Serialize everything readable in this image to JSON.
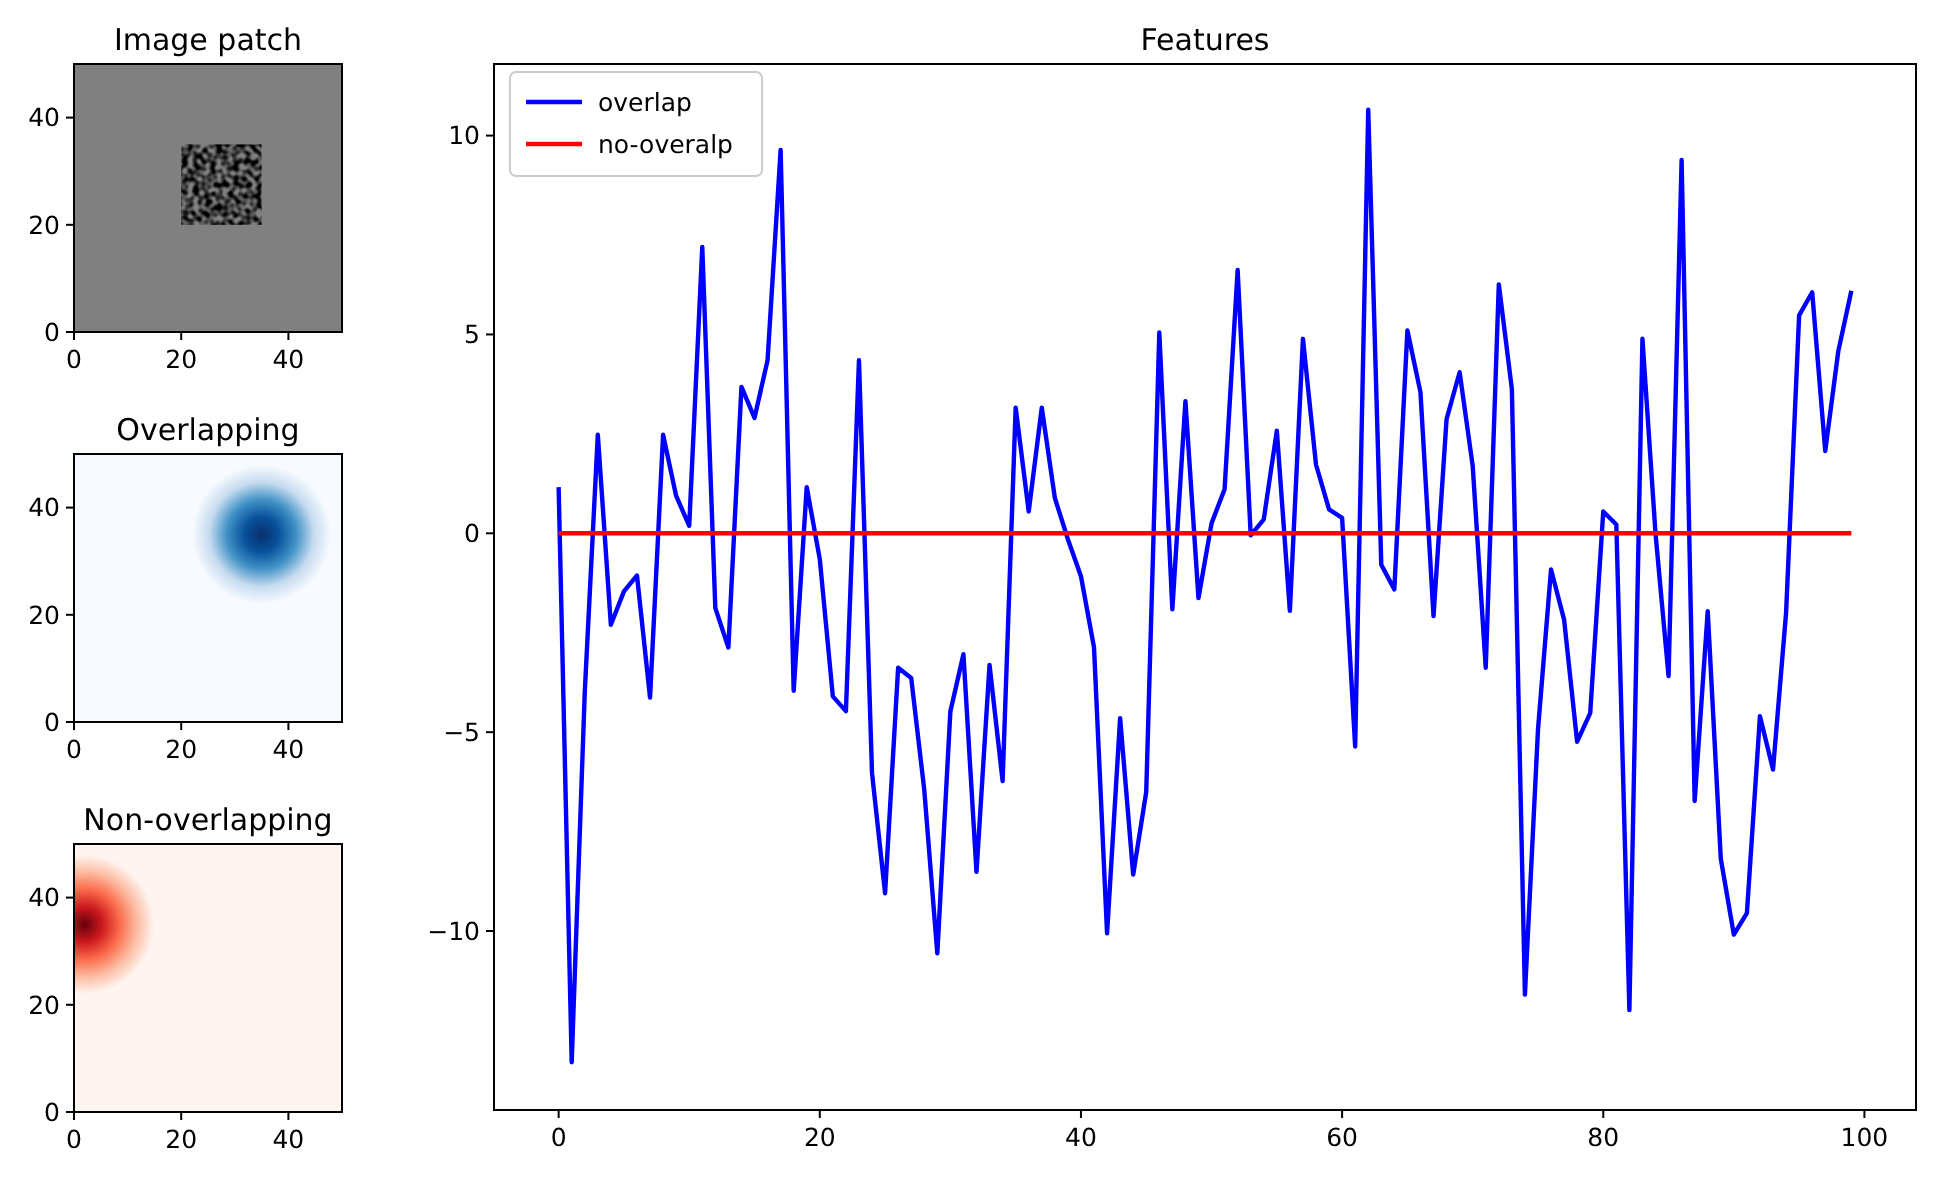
{
  "chart_data": [
    {
      "type": "scatter",
      "title": "Image patch",
      "xlim": [
        0,
        50
      ],
      "ylim": [
        0,
        50
      ],
      "xticks": [
        0,
        20,
        40
      ],
      "yticks": [
        0,
        20,
        40
      ]
    },
    {
      "type": "scatter",
      "title": "Overlapping",
      "xlim": [
        0,
        50
      ],
      "ylim": [
        0,
        50
      ],
      "xticks": [
        0,
        20,
        40
      ],
      "yticks": [
        0,
        20,
        40
      ]
    },
    {
      "type": "scatter",
      "title": "Non-overlapping",
      "xlim": [
        0,
        50
      ],
      "ylim": [
        0,
        50
      ],
      "xticks": [
        0,
        20,
        40
      ],
      "yticks": [
        0,
        20,
        40
      ]
    },
    {
      "type": "line",
      "title": "Features",
      "xlim": [
        -4.95,
        103.95
      ],
      "ylim": [
        -14.5,
        11.8
      ],
      "xticks": [
        0,
        20,
        40,
        60,
        80,
        100
      ],
      "yticks": [
        {
          "value": -10,
          "label": "−10"
        },
        {
          "value": -5,
          "label": "−5"
        },
        0,
        5,
        10
      ],
      "legend": "top left",
      "line_style": "solid",
      "marker": "none",
      "grid": false,
      "x": [
        0,
        1,
        2,
        3,
        4,
        5,
        6,
        7,
        8,
        9,
        10,
        11,
        12,
        13,
        14,
        15,
        16,
        17,
        18,
        19,
        20,
        21,
        22,
        23,
        24,
        25,
        26,
        27,
        28,
        29,
        30,
        31,
        32,
        33,
        34,
        35,
        36,
        37,
        38,
        39,
        40,
        41,
        42,
        43,
        44,
        45,
        46,
        47,
        48,
        49,
        50,
        51,
        52,
        53,
        54,
        55,
        56,
        57,
        58,
        59,
        60,
        61,
        62,
        63,
        64,
        65,
        66,
        67,
        68,
        69,
        70,
        71,
        72,
        73,
        74,
        75,
        76,
        77,
        78,
        79,
        80,
        81,
        82,
        83,
        84,
        85,
        86,
        87,
        88,
        89,
        90,
        91,
        92,
        93,
        94,
        95,
        96,
        97,
        98,
        99
      ],
      "series": [
        {
          "name": "overlap",
          "color": "#0000ff",
          "values": [
            1.16,
            -13.3,
            -4,
            2.48,
            -2.3,
            -1.46,
            -1.06,
            -4.13,
            2.48,
            0.94,
            0.19,
            7.2,
            -1.88,
            -2.87,
            3.68,
            2.9,
            4.35,
            9.64,
            -3.96,
            1.16,
            -0.65,
            -4.1,
            -4.47,
            4.35,
            -6.03,
            -9.05,
            -3.38,
            -3.64,
            -6.45,
            -10.56,
            -4.48,
            -3.04,
            -8.51,
            -3.31,
            -6.23,
            3.16,
            0.55,
            3.16,
            0.89,
            -0.15,
            -1.08,
            -2.87,
            -10.06,
            -4.65,
            -8.58,
            -6.5,
            5.05,
            -1.91,
            3.32,
            -1.63,
            0.25,
            1.11,
            6.62,
            -0.05,
            0.35,
            2.58,
            -1.95,
            4.89,
            1.73,
            0.6,
            0.39,
            -5.36,
            10.65,
            -0.79,
            -1.41,
            5.1,
            3.55,
            -2.08,
            2.87,
            4.05,
            1.7,
            -3.38,
            6.26,
            3.63,
            -11.6,
            -4.94,
            -0.91,
            -2.17,
            -5.24,
            -4.52,
            0.55,
            0.22,
            -11.99,
            4.89,
            0,
            -3.59,
            9.39,
            -6.73,
            -1.96,
            -8.18,
            -10.09,
            -9.55,
            -4.6,
            -5.94,
            -2,
            5.48,
            6.06,
            2.07,
            4.58,
            6.1
          ]
        },
        {
          "name": "no-overalp",
          "color": "#ff0000",
          "x": [
            0,
            99
          ],
          "values": [
            0,
            0
          ]
        }
      ]
    }
  ]
}
